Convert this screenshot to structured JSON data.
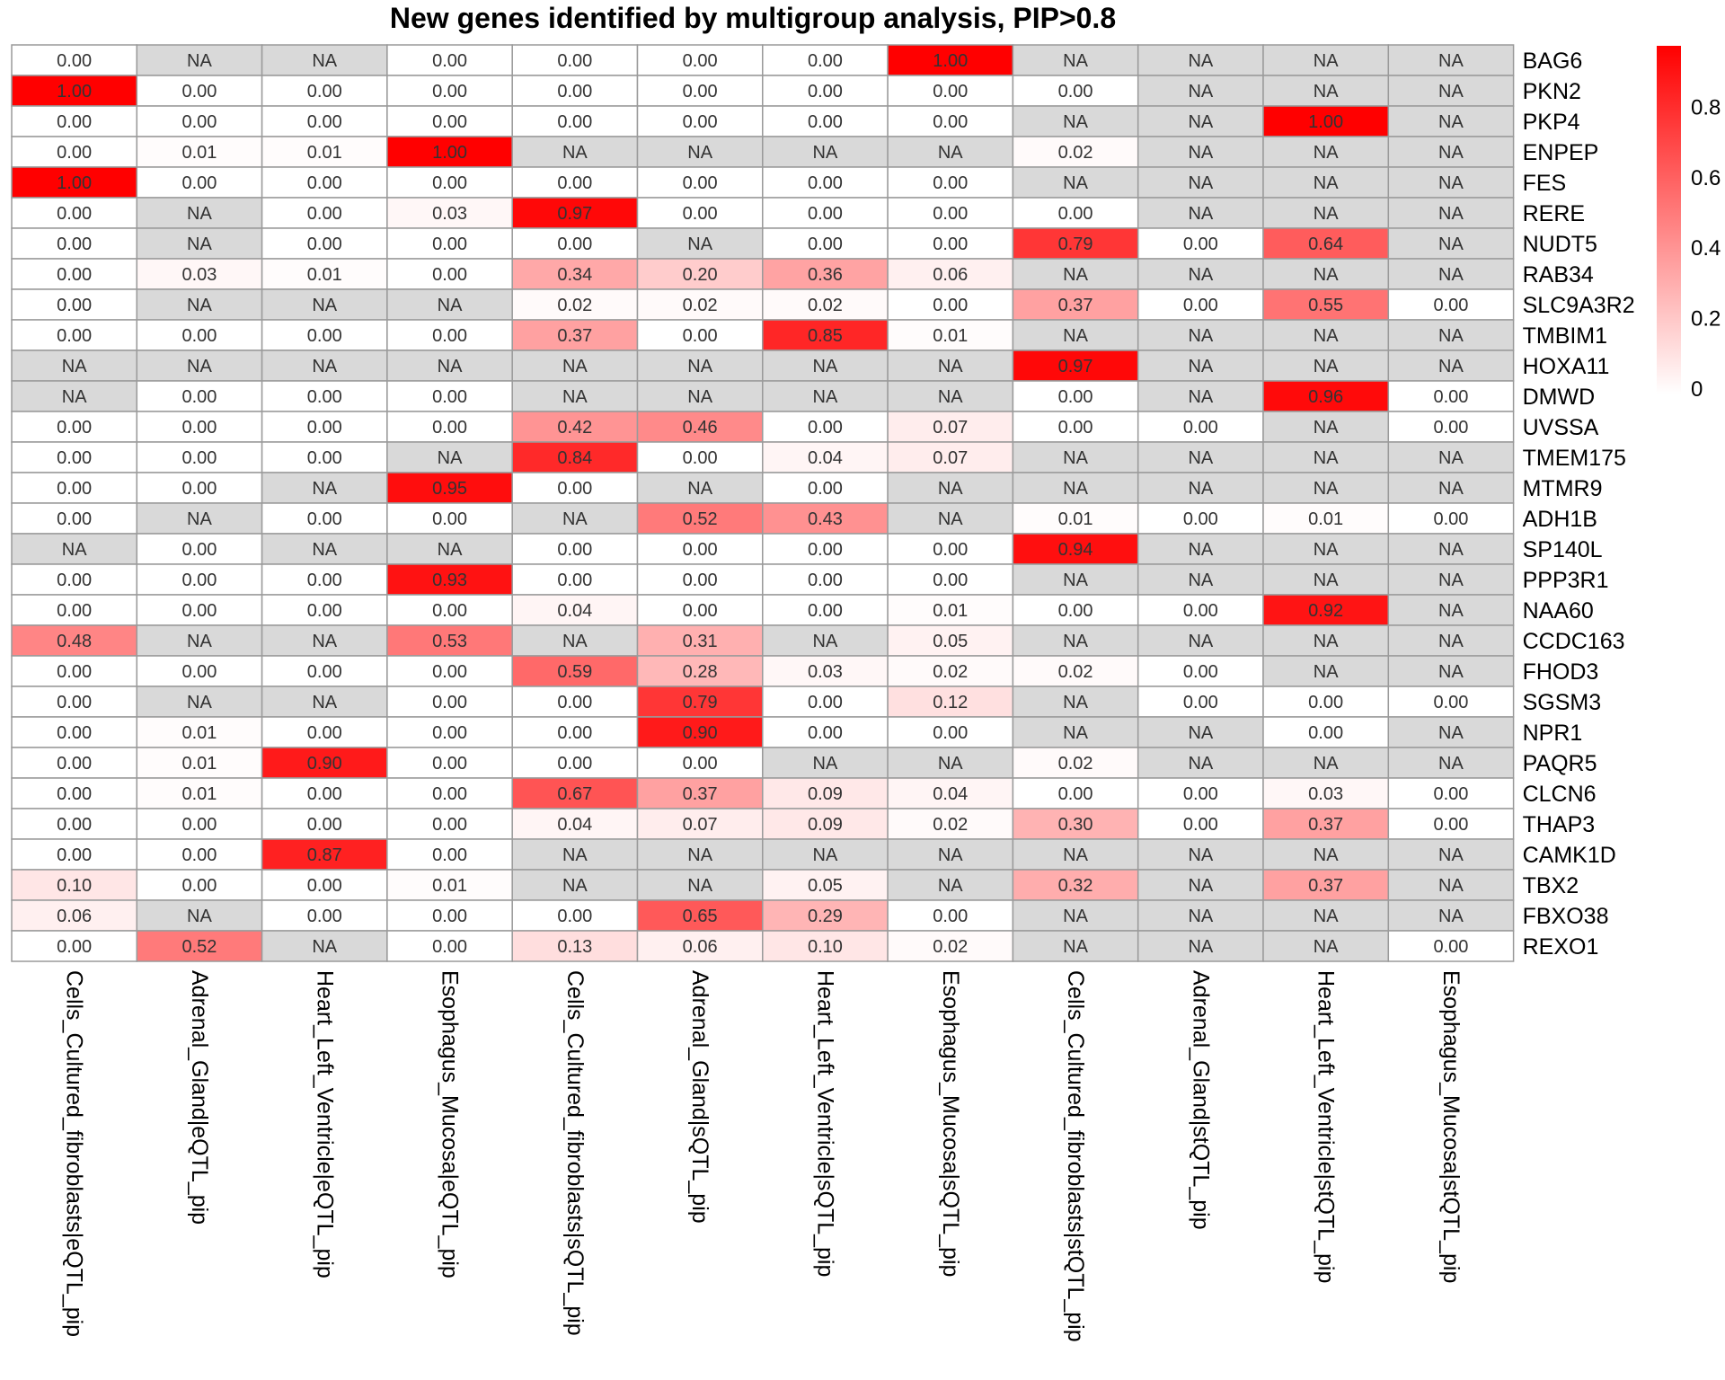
{
  "chart_data": {
    "type": "heatmap",
    "title": "New genes identified by multigroup analysis, PIP>0.8",
    "columns": [
      "Cells_Cultured_fibroblasts|eQTL_pip",
      "Adrenal_Gland|eQTL_pip",
      "Heart_Left_Ventricle|eQTL_pip",
      "Esophagus_Mucosa|eQTL_pip",
      "Cells_Cultured_fibroblasts|sQTL_pip",
      "Adrenal_Gland|sQTL_pip",
      "Heart_Left_Ventricle|sQTL_pip",
      "Esophagus_Mucosa|sQTL_pip",
      "Cells_Cultured_fibroblasts|stQTL_pip",
      "Adrenal_Gland|stQTL_pip",
      "Heart_Left_Ventricle|stQTL_pip",
      "Esophagus_Mucosa|stQTL_pip"
    ],
    "rows": [
      "BAG6",
      "PKN2",
      "PKP4",
      "ENPEP",
      "FES",
      "RERE",
      "NUDT5",
      "RAB34",
      "SLC9A3R2",
      "TMBIM1",
      "HOXA11",
      "DMWD",
      "UVSSA",
      "TMEM175",
      "MTMR9",
      "ADH1B",
      "SP140L",
      "PPP3R1",
      "NAA60",
      "CCDC163",
      "FHOD3",
      "SGSM3",
      "NPR1",
      "PAQR5",
      "CLCN6",
      "THAP3",
      "CAMK1D",
      "TBX2",
      "FBXO38",
      "REXO1"
    ],
    "values": [
      [
        "0.00",
        "NA",
        "NA",
        "0.00",
        "0.00",
        "0.00",
        "0.00",
        "1.00",
        "NA",
        "NA",
        "NA",
        "NA"
      ],
      [
        "1.00",
        "0.00",
        "0.00",
        "0.00",
        "0.00",
        "0.00",
        "0.00",
        "0.00",
        "0.00",
        "NA",
        "NA",
        "NA"
      ],
      [
        "0.00",
        "0.00",
        "0.00",
        "0.00",
        "0.00",
        "0.00",
        "0.00",
        "0.00",
        "NA",
        "NA",
        "1.00",
        "NA"
      ],
      [
        "0.00",
        "0.01",
        "0.01",
        "1.00",
        "NA",
        "NA",
        "NA",
        "NA",
        "0.02",
        "NA",
        "NA",
        "NA"
      ],
      [
        "1.00",
        "0.00",
        "0.00",
        "0.00",
        "0.00",
        "0.00",
        "0.00",
        "0.00",
        "NA",
        "NA",
        "NA",
        "NA"
      ],
      [
        "0.00",
        "NA",
        "0.00",
        "0.03",
        "0.97",
        "0.00",
        "0.00",
        "0.00",
        "0.00",
        "NA",
        "NA",
        "NA"
      ],
      [
        "0.00",
        "NA",
        "0.00",
        "0.00",
        "0.00",
        "NA",
        "0.00",
        "0.00",
        "0.79",
        "0.00",
        "0.64",
        "NA"
      ],
      [
        "0.00",
        "0.03",
        "0.01",
        "0.00",
        "0.34",
        "0.20",
        "0.36",
        "0.06",
        "NA",
        "NA",
        "NA",
        "NA"
      ],
      [
        "0.00",
        "NA",
        "NA",
        "NA",
        "0.02",
        "0.02",
        "0.02",
        "0.00",
        "0.37",
        "0.00",
        "0.55",
        "0.00"
      ],
      [
        "0.00",
        "0.00",
        "0.00",
        "0.00",
        "0.37",
        "0.00",
        "0.85",
        "0.01",
        "NA",
        "NA",
        "NA",
        "NA"
      ],
      [
        "NA",
        "NA",
        "NA",
        "NA",
        "NA",
        "NA",
        "NA",
        "NA",
        "0.97",
        "NA",
        "NA",
        "NA"
      ],
      [
        "NA",
        "0.00",
        "0.00",
        "0.00",
        "NA",
        "NA",
        "NA",
        "NA",
        "0.00",
        "NA",
        "0.96",
        "0.00"
      ],
      [
        "0.00",
        "0.00",
        "0.00",
        "0.00",
        "0.42",
        "0.46",
        "0.00",
        "0.07",
        "0.00",
        "0.00",
        "NA",
        "0.00"
      ],
      [
        "0.00",
        "0.00",
        "0.00",
        "NA",
        "0.84",
        "0.00",
        "0.04",
        "0.07",
        "NA",
        "NA",
        "NA",
        "NA"
      ],
      [
        "0.00",
        "0.00",
        "NA",
        "0.95",
        "0.00",
        "NA",
        "0.00",
        "NA",
        "NA",
        "NA",
        "NA",
        "NA"
      ],
      [
        "0.00",
        "NA",
        "0.00",
        "0.00",
        "NA",
        "0.52",
        "0.43",
        "NA",
        "0.01",
        "0.00",
        "0.01",
        "0.00"
      ],
      [
        "NA",
        "0.00",
        "NA",
        "NA",
        "0.00",
        "0.00",
        "0.00",
        "0.00",
        "0.94",
        "NA",
        "NA",
        "NA"
      ],
      [
        "0.00",
        "0.00",
        "0.00",
        "0.93",
        "0.00",
        "0.00",
        "0.00",
        "0.00",
        "NA",
        "NA",
        "NA",
        "NA"
      ],
      [
        "0.00",
        "0.00",
        "0.00",
        "0.00",
        "0.04",
        "0.00",
        "0.00",
        "0.01",
        "0.00",
        "0.00",
        "0.92",
        "NA"
      ],
      [
        "0.48",
        "NA",
        "NA",
        "0.53",
        "NA",
        "0.31",
        "NA",
        "0.05",
        "NA",
        "NA",
        "NA",
        "NA"
      ],
      [
        "0.00",
        "0.00",
        "0.00",
        "0.00",
        "0.59",
        "0.28",
        "0.03",
        "0.02",
        "0.02",
        "0.00",
        "NA",
        "NA"
      ],
      [
        "0.00",
        "NA",
        "NA",
        "0.00",
        "0.00",
        "0.79",
        "0.00",
        "0.12",
        "NA",
        "0.00",
        "0.00",
        "0.00"
      ],
      [
        "0.00",
        "0.01",
        "0.00",
        "0.00",
        "0.00",
        "0.90",
        "0.00",
        "0.00",
        "NA",
        "NA",
        "0.00",
        "NA"
      ],
      [
        "0.00",
        "0.01",
        "0.90",
        "0.00",
        "0.00",
        "0.00",
        "NA",
        "NA",
        "0.02",
        "NA",
        "NA",
        "NA"
      ],
      [
        "0.00",
        "0.01",
        "0.00",
        "0.00",
        "0.67",
        "0.37",
        "0.09",
        "0.04",
        "0.00",
        "0.00",
        "0.03",
        "0.00"
      ],
      [
        "0.00",
        "0.00",
        "0.00",
        "0.00",
        "0.04",
        "0.07",
        "0.09",
        "0.02",
        "0.30",
        "0.00",
        "0.37",
        "0.00"
      ],
      [
        "0.00",
        "0.00",
        "0.87",
        "0.00",
        "NA",
        "NA",
        "NA",
        "NA",
        "NA",
        "NA",
        "NA",
        "NA"
      ],
      [
        "0.10",
        "0.00",
        "0.00",
        "0.01",
        "NA",
        "NA",
        "0.05",
        "NA",
        "0.32",
        "NA",
        "0.37",
        "NA"
      ],
      [
        "0.06",
        "NA",
        "0.00",
        "0.00",
        "0.00",
        "0.65",
        "0.29",
        "0.00",
        "NA",
        "NA",
        "NA",
        "NA"
      ],
      [
        "0.00",
        "0.52",
        "NA",
        "0.00",
        "0.13",
        "0.06",
        "0.10",
        "0.02",
        "NA",
        "NA",
        "NA",
        "0.00"
      ]
    ],
    "color_scale": {
      "min": 0,
      "max": 1,
      "low_color": "#ffffff",
      "high_color": "#ff0000",
      "na_color": "#d9d9d9",
      "ticks": [
        "0",
        "0.2",
        "0.4",
        "0.6",
        "0.8"
      ]
    }
  }
}
